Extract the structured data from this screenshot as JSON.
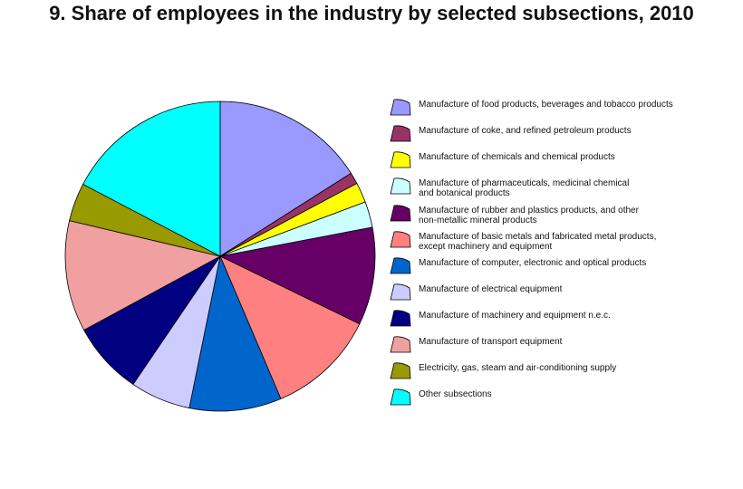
{
  "chart_data": {
    "type": "pie",
    "title": "9. Share of employees in the industry by selected subsections, 2010",
    "unit": "percent (estimated)",
    "legend_position": "right",
    "slices": [
      {
        "label": "Manufacture of food products, beverages and tobacco products",
        "value": 16.0,
        "color": "#9999ff"
      },
      {
        "label": "Manufacture of coke, and refined petroleum products",
        "value": 1.2,
        "color": "#993366"
      },
      {
        "label": "Manufacture of chemicals and chemical products",
        "value": 2.1,
        "color": "#ffff00"
      },
      {
        "label": "Manufacture of pharmaceuticals, medicinal chemical\nand botanical products",
        "value": 2.7,
        "color": "#ccffff"
      },
      {
        "label": "Manufacture of rubber and plastics products, and other\nnon-metallic mineral products",
        "value": 10.2,
        "color": "#660066"
      },
      {
        "label": "Manufacture of basic metals and fabricated metal products,\nexcept machinery and equipment",
        "value": 11.4,
        "color": "#ff8080"
      },
      {
        "label": "Manufacture of computer, electronic  and optical products",
        "value": 9.6,
        "color": "#0066cc"
      },
      {
        "label": "Manufacture of electrical equipment",
        "value": 6.3,
        "color": "#ccccff"
      },
      {
        "label": "Manufacture of machinery and equipment n.e.c.",
        "value": 7.6,
        "color": "#000080"
      },
      {
        "label": "Manufacture of transport equipment",
        "value": 11.6,
        "color": "#f0a0a0"
      },
      {
        "label": "Electricity, gas, steam and air-conditioning supply",
        "value": 4.0,
        "color": "#999900"
      },
      {
        "label": "Other subsections",
        "value": 17.3,
        "color": "#00ffff"
      }
    ]
  }
}
